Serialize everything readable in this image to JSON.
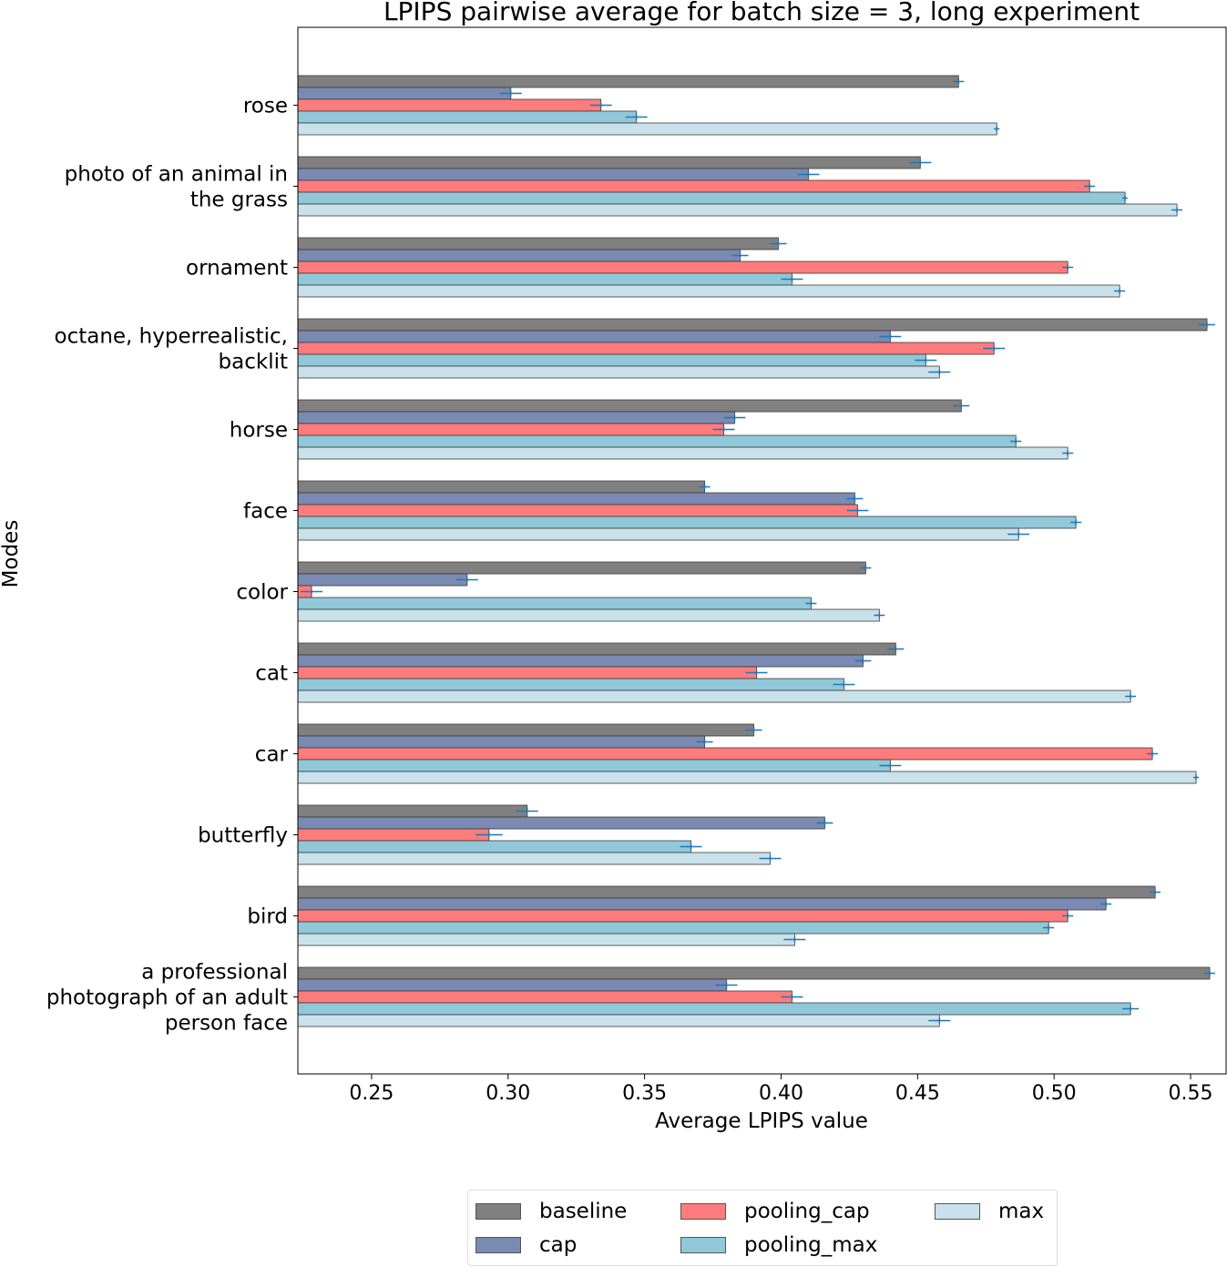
{
  "chart_data": {
    "type": "bar",
    "orientation": "horizontal",
    "title": "LPIPS pairwise average for batch size = 3, long experiment",
    "xlabel": "Average LPIPS value",
    "ylabel": "Modes",
    "xlim": [
      0.223,
      0.563
    ],
    "xticks": [
      "0.25",
      "0.30",
      "0.35",
      "0.40",
      "0.45",
      "0.50",
      "0.55"
    ],
    "xtick_values": [
      0.25,
      0.3,
      0.35,
      0.4,
      0.45,
      0.5,
      0.55
    ],
    "categories": [
      "rose",
      "photo of an animal in the grass",
      "ornament",
      "octane, hyperrealistic, backlit",
      "horse",
      "face",
      "color",
      "cat",
      "car",
      "butterfly",
      "bird",
      "a professional photograph of an adult person face"
    ],
    "category_lines": [
      [
        "rose"
      ],
      [
        "photo of an animal in",
        "the grass"
      ],
      [
        "ornament"
      ],
      [
        "octane, hyperrealistic,",
        "backlit"
      ],
      [
        "horse"
      ],
      [
        "face"
      ],
      [
        "color"
      ],
      [
        "cat"
      ],
      [
        "car"
      ],
      [
        "butterfly"
      ],
      [
        "bird"
      ],
      [
        "a professional",
        "photograph of an adult",
        "person face"
      ]
    ],
    "series": [
      {
        "name": "baseline",
        "color": "#808080",
        "values": [
          0.465,
          0.451,
          0.399,
          0.556,
          0.466,
          0.372,
          0.431,
          0.442,
          0.39,
          0.307,
          0.537,
          0.557
        ],
        "errors": [
          0.002,
          0.004,
          0.003,
          0.003,
          0.003,
          0.002,
          0.002,
          0.003,
          0.003,
          0.004,
          0.002,
          0.002
        ]
      },
      {
        "name": "cap",
        "color": "#7a8ab3",
        "values": [
          0.301,
          0.41,
          0.385,
          0.44,
          0.383,
          0.427,
          0.285,
          0.43,
          0.372,
          0.416,
          0.519,
          0.38
        ],
        "errors": [
          0.004,
          0.004,
          0.003,
          0.004,
          0.004,
          0.003,
          0.004,
          0.003,
          0.003,
          0.003,
          0.002,
          0.004
        ]
      },
      {
        "name": "pooling_cap",
        "color": "#ff7c7c",
        "values": [
          0.334,
          0.513,
          0.505,
          0.478,
          0.379,
          0.428,
          0.228,
          0.391,
          0.536,
          0.293,
          0.505,
          0.404
        ],
        "errors": [
          0.004,
          0.002,
          0.002,
          0.004,
          0.004,
          0.004,
          0.004,
          0.004,
          0.002,
          0.005,
          0.002,
          0.004
        ]
      },
      {
        "name": "pooling_max",
        "color": "#90c8d9",
        "values": [
          0.347,
          0.526,
          0.404,
          0.453,
          0.486,
          0.508,
          0.411,
          0.423,
          0.44,
          0.367,
          0.498,
          0.528
        ],
        "errors": [
          0.004,
          0.001,
          0.004,
          0.004,
          0.002,
          0.002,
          0.002,
          0.004,
          0.004,
          0.004,
          0.002,
          0.003
        ]
      },
      {
        "name": "max",
        "color": "#c9e1ea",
        "values": [
          0.479,
          0.545,
          0.524,
          0.458,
          0.505,
          0.487,
          0.436,
          0.528,
          0.552,
          0.396,
          0.405,
          0.458
        ],
        "errors": [
          0.001,
          0.002,
          0.002,
          0.004,
          0.002,
          0.004,
          0.002,
          0.002,
          0.001,
          0.004,
          0.004,
          0.004
        ]
      }
    ],
    "legend_location": "below plot",
    "grid": false
  }
}
